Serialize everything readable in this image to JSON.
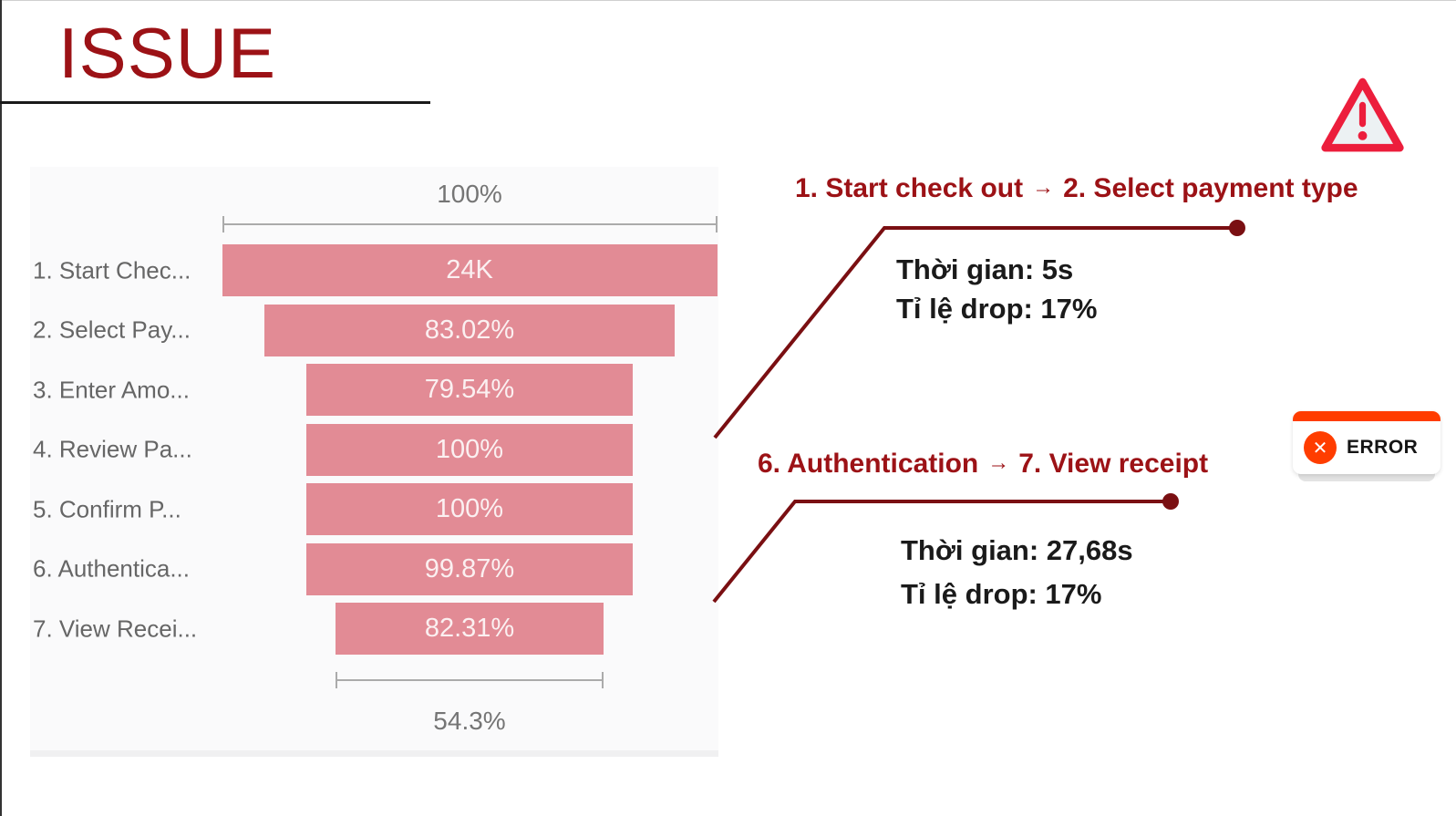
{
  "page": {
    "title": "ISSUE"
  },
  "chart_data": {
    "type": "funnel",
    "title": "",
    "stages": [
      {
        "label": "1. Start Chec...",
        "value_label": "24K",
        "width_pct": 100.0
      },
      {
        "label": "2. Select Pay...",
        "value_label": "83.02%",
        "width_pct": 83.02
      },
      {
        "label": "3. Enter Amo...",
        "value_label": "79.54%",
        "width_pct": 66.04
      },
      {
        "label": "4. Review Pa...",
        "value_label": "100%",
        "width_pct": 66.04
      },
      {
        "label": "5. Confirm P...",
        "value_label": "100%",
        "width_pct": 66.04
      },
      {
        "label": "6. Authentica...",
        "value_label": "99.87%",
        "width_pct": 65.95
      },
      {
        "label": "7. View Recei...",
        "value_label": "82.31%",
        "width_pct": 54.28
      }
    ],
    "top_bracket_label": "100%",
    "bottom_bracket_label": "54.3%",
    "first_stage_value": "24K",
    "bar_color": "#E28B95",
    "legend": "none",
    "grid": "off"
  },
  "annotations": [
    {
      "from_label": "1. Start check out",
      "arrow": "→",
      "to_label": "2. Select payment type",
      "time_label": "Thời gian: 5s",
      "drop_label": "Tỉ lệ drop: 17%"
    },
    {
      "from_label": "6. Authentication",
      "arrow": "→",
      "to_label": "7. View receipt",
      "time_label": "Thời gian: 27,68s",
      "drop_label": "Tỉ lệ drop: 17%"
    }
  ],
  "badges": {
    "error_label": "ERROR",
    "error_x_glyph": "✕"
  },
  "colors": {
    "accent_dark_red": "#9C1216",
    "connector_maroon": "#7A0F12",
    "funnel_bar_pink": "#E28B95",
    "funnel_value_text": "#FBF0F1",
    "label_gray": "#666666",
    "bracket_gray": "#757575",
    "error_orange": "#FF3D00",
    "warning_red": "#EC1E3C",
    "text_black": "#1A1A1A"
  }
}
